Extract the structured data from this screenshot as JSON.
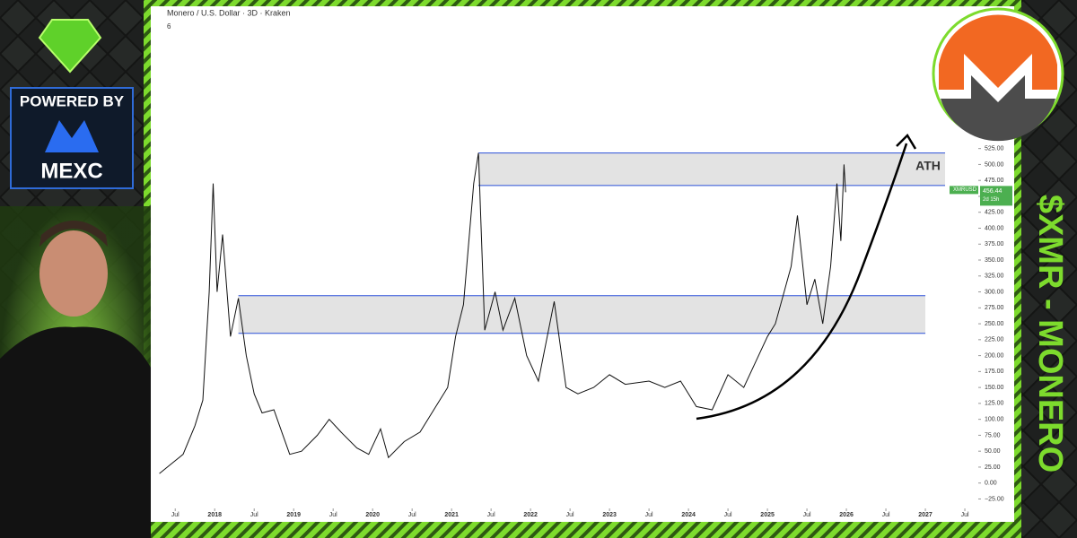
{
  "chart_data": {
    "type": "line",
    "title": "Monero / U.S. Dollar · 3D · Kraken",
    "indicator": "6",
    "xlim": [
      2017.27,
      2027.67
    ],
    "xticks": [
      {
        "value": 2017.5,
        "label": "Jul"
      },
      {
        "value": 2018,
        "label": "2018"
      },
      {
        "value": 2018.5,
        "label": "Jul"
      },
      {
        "value": 2019,
        "label": "2019"
      },
      {
        "value": 2019.5,
        "label": "Jul"
      },
      {
        "value": 2020,
        "label": "2020"
      },
      {
        "value": 2020.5,
        "label": "Jul"
      },
      {
        "value": 2021,
        "label": "2021"
      },
      {
        "value": 2021.5,
        "label": "Jul"
      },
      {
        "value": 2022,
        "label": "2022"
      },
      {
        "value": 2022.5,
        "label": "Jul"
      },
      {
        "value": 2023,
        "label": "2023"
      },
      {
        "value": 2023.5,
        "label": "Jul"
      },
      {
        "value": 2024,
        "label": "2024"
      },
      {
        "value": 2024.5,
        "label": "Jul"
      },
      {
        "value": 2025,
        "label": "2025"
      },
      {
        "value": 2025.5,
        "label": "Jul"
      },
      {
        "value": 2026,
        "label": "2026"
      },
      {
        "value": 2026.5,
        "label": "Jul"
      },
      {
        "value": 2027,
        "label": "2027"
      },
      {
        "value": 2027.5,
        "label": "Jul"
      }
    ],
    "ylim": [
      -37,
      730
    ],
    "yticks": [
      {
        "value": -25,
        "label": "−25.00"
      },
      {
        "value": 0,
        "label": "0.00"
      },
      {
        "value": 25,
        "label": "25.00"
      },
      {
        "value": 50,
        "label": "50.00"
      },
      {
        "value": 75,
        "label": "75.00"
      },
      {
        "value": 100,
        "label": "100.00"
      },
      {
        "value": 125,
        "label": "125.00"
      },
      {
        "value": 150,
        "label": "150.00"
      },
      {
        "value": 175,
        "label": "175.00"
      },
      {
        "value": 200,
        "label": "200.00"
      },
      {
        "value": 225,
        "label": "225.00"
      },
      {
        "value": 250,
        "label": "250.00"
      },
      {
        "value": 275,
        "label": "275.00"
      },
      {
        "value": 300,
        "label": "300.00"
      },
      {
        "value": 325,
        "label": "325.00"
      },
      {
        "value": 350,
        "label": "350.00"
      },
      {
        "value": 375,
        "label": "375.00"
      },
      {
        "value": 400,
        "label": "400.00"
      },
      {
        "value": 425,
        "label": "425.00"
      },
      {
        "value": 450,
        "label": "450.00"
      },
      {
        "value": 475,
        "label": "475.00"
      },
      {
        "value": 500,
        "label": "500.00"
      },
      {
        "value": 525,
        "label": "525.00"
      }
    ],
    "series": [
      {
        "name": "XMRUSD",
        "color": "#111111",
        "x": [
          2017.3,
          2017.45,
          2017.6,
          2017.75,
          2017.85,
          2017.93,
          2017.98,
          2018.03,
          2018.1,
          2018.2,
          2018.3,
          2018.4,
          2018.5,
          2018.6,
          2018.75,
          2018.85,
          2018.95,
          2019.1,
          2019.3,
          2019.45,
          2019.6,
          2019.8,
          2019.95,
          2020.1,
          2020.2,
          2020.4,
          2020.6,
          2020.8,
          2020.95,
          2021.05,
          2021.15,
          2021.28,
          2021.34,
          2021.42,
          2021.55,
          2021.65,
          2021.8,
          2021.95,
          2022.1,
          2022.3,
          2022.45,
          2022.6,
          2022.8,
          2023.0,
          2023.2,
          2023.5,
          2023.7,
          2023.9,
          2024.1,
          2024.3,
          2024.5,
          2024.7,
          2024.85,
          2025.0,
          2025.1,
          2025.3,
          2025.38,
          2025.5,
          2025.6,
          2025.7,
          2025.8,
          2025.88,
          2025.93,
          2025.97,
          2025.99
        ],
        "values": [
          15,
          30,
          45,
          90,
          130,
          300,
          470,
          300,
          390,
          230,
          290,
          200,
          140,
          110,
          115,
          80,
          45,
          50,
          75,
          100,
          80,
          55,
          45,
          85,
          40,
          65,
          80,
          120,
          150,
          230,
          280,
          470,
          518,
          240,
          300,
          240,
          290,
          200,
          160,
          285,
          150,
          140,
          150,
          170,
          155,
          160,
          150,
          160,
          120,
          115,
          170,
          150,
          190,
          230,
          250,
          340,
          420,
          280,
          320,
          250,
          340,
          470,
          380,
          500,
          456.44
        ]
      }
    ],
    "zones": [
      {
        "from": 467,
        "to": 518,
        "start": 2021.34,
        "end": 2027.25
      },
      {
        "from": 235,
        "to": 294,
        "start": 2018.3,
        "end": 2027.0
      }
    ],
    "price_label": {
      "symbol": "XMRUSD",
      "value": 456.44,
      "countdown": "2d 15h"
    },
    "annotations": {
      "ath": "ATH",
      "side_title": "$XMR - MONERO",
      "powered_by": "POWERED BY",
      "brand": "MEXC"
    }
  }
}
